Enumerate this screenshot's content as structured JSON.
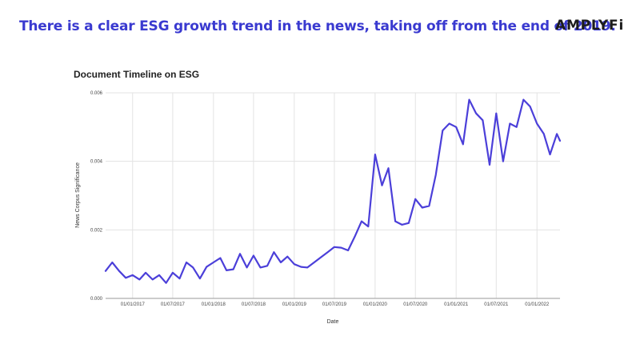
{
  "header": {
    "headline": "There is a clear ESG growth trend in the news, taking off from the end of 2019.",
    "brand": "AMPLYFi"
  },
  "colors": {
    "headline": "#3a3ad0",
    "line": "#4b3fd9",
    "grid": "#e3e3e3"
  },
  "chart_data": {
    "type": "line",
    "title": "Document Timeline on ESG",
    "xlabel": "Date",
    "ylabel": "News Corpus Significance",
    "ylim": [
      0,
      0.006
    ],
    "yticks": [
      0,
      0.002,
      0.004,
      0.006
    ],
    "ytick_labels": [
      "0.000",
      "0.002",
      "0.004",
      "0.006"
    ],
    "xticks": [
      "2017-01-01",
      "2017-07-01",
      "2018-01-01",
      "2018-07-01",
      "2019-01-01",
      "2019-07-01",
      "2020-01-01",
      "2020-07-01",
      "2021-01-01",
      "2021-07-01",
      "2022-01-01"
    ],
    "xtick_labels": [
      "01/01/2017",
      "01/07/2017",
      "01/01/2018",
      "01/07/2018",
      "01/01/2019",
      "01/07/2019",
      "01/01/2020",
      "01/07/2020",
      "01/01/2021",
      "01/07/2021",
      "01/01/2022"
    ],
    "xlim": [
      "2016-09-01",
      "2022-04-15"
    ],
    "grid": true,
    "series": [
      {
        "x": [
          "2016-09-01",
          "2016-10-01",
          "2016-11-01",
          "2016-12-01",
          "2017-01-01",
          "2017-02-01",
          "2017-03-01",
          "2017-04-01",
          "2017-05-01",
          "2017-06-01",
          "2017-07-01",
          "2017-08-01",
          "2017-09-01",
          "2017-10-01",
          "2017-11-01",
          "2017-12-01",
          "2018-01-01",
          "2018-02-01",
          "2018-03-01",
          "2018-04-01",
          "2018-05-01",
          "2018-06-01",
          "2018-07-01",
          "2018-08-01",
          "2018-09-01",
          "2018-10-01",
          "2018-11-01",
          "2018-12-01",
          "2019-01-01",
          "2019-02-01",
          "2019-03-01",
          "2019-04-01",
          "2019-05-01",
          "2019-06-01",
          "2019-07-01",
          "2019-08-01",
          "2019-09-01",
          "2019-10-01",
          "2019-11-01",
          "2019-12-01",
          "2020-01-01",
          "2020-02-01",
          "2020-03-01",
          "2020-04-01",
          "2020-05-01",
          "2020-06-01",
          "2020-07-01",
          "2020-08-01",
          "2020-09-01",
          "2020-10-01",
          "2020-11-01",
          "2020-12-01",
          "2021-01-01",
          "2021-02-01",
          "2021-03-01",
          "2021-04-01",
          "2021-05-01",
          "2021-06-01",
          "2021-07-01",
          "2021-08-01",
          "2021-09-01",
          "2021-10-01",
          "2021-11-01",
          "2021-12-01",
          "2022-01-01",
          "2022-02-01",
          "2022-03-01",
          "2022-04-01",
          "2022-04-15"
        ],
        "y": [
          0.0008,
          0.00105,
          0.0008,
          0.0006,
          0.00068,
          0.00055,
          0.00075,
          0.00055,
          0.00068,
          0.00045,
          0.00075,
          0.00058,
          0.00105,
          0.0009,
          0.00058,
          0.00092,
          0.00105,
          0.00118,
          0.00082,
          0.00085,
          0.0013,
          0.0009,
          0.00125,
          0.0009,
          0.00095,
          0.00135,
          0.00105,
          0.00122,
          0.001,
          0.00092,
          0.0009,
          0.00105,
          0.0012,
          0.00135,
          0.0015,
          0.00148,
          0.0014,
          0.0018,
          0.00225,
          0.0021,
          0.0042,
          0.0033,
          0.0038,
          0.00225,
          0.00215,
          0.0022,
          0.0029,
          0.00265,
          0.0027,
          0.0036,
          0.0049,
          0.0051,
          0.005,
          0.0045,
          0.0058,
          0.0054,
          0.0052,
          0.0039,
          0.0054,
          0.004,
          0.0051,
          0.005,
          0.0058,
          0.0056,
          0.0051,
          0.0048,
          0.0042,
          0.0048,
          0.0046
        ]
      }
    ]
  }
}
